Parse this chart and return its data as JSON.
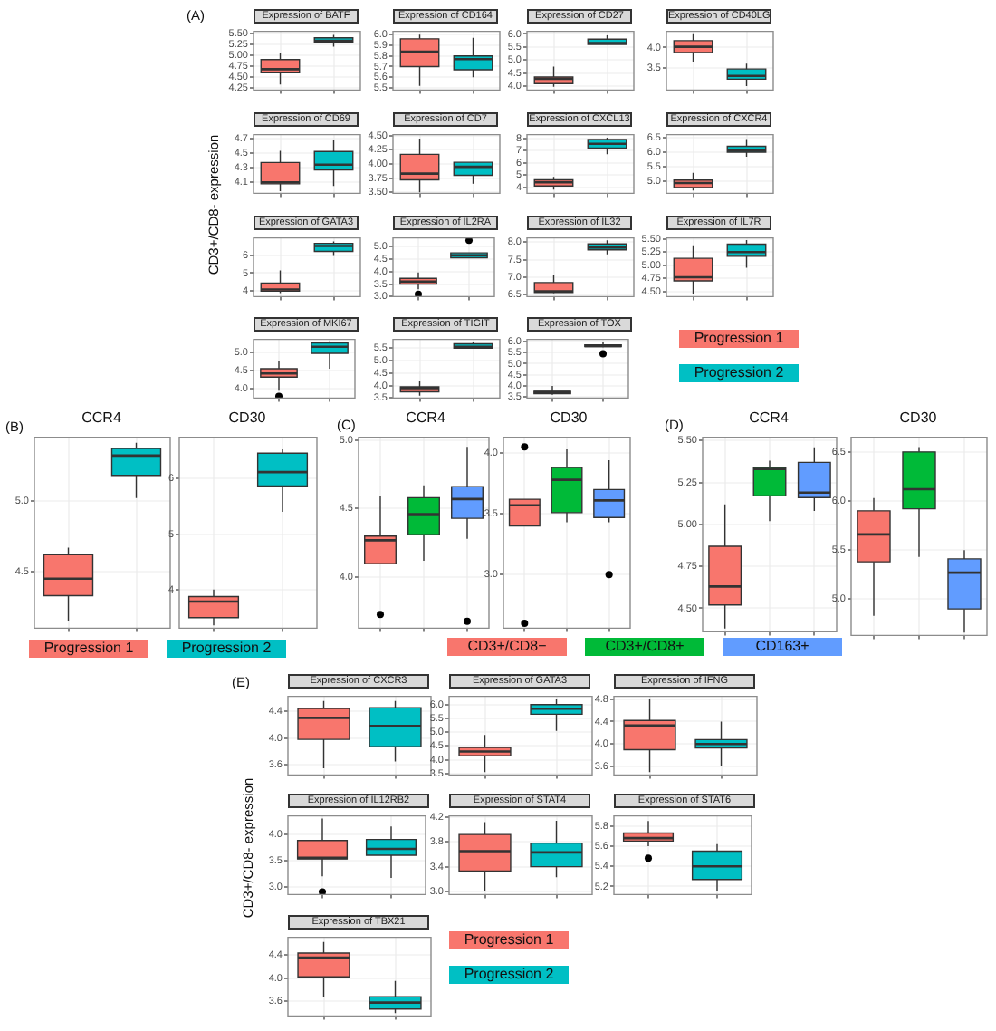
{
  "chart_data": [
    {
      "type": "box",
      "title": "Expression of BATF",
      "annotations": [
        "(A)"
      ],
      "ylabel": "CD3+/CD8- expression",
      "categories": [
        null,
        null
      ],
      "ylim": [
        4.2,
        5.55
      ],
      "yticks": [
        {
          "value": 4.25,
          "label": "4.25"
        },
        {
          "value": 4.5,
          "label": "4.50"
        },
        {
          "value": 4.75,
          "label": "4.75"
        },
        {
          "value": 5,
          "label": "5.00"
        },
        {
          "value": 5.25,
          "label": "5.25"
        },
        {
          "value": 5.5,
          "label": "5.50"
        }
      ],
      "grid": true,
      "series": [
        {
          "color": "#f8766d",
          "boxes": [
            {
              "low": 4.33,
              "q1": 4.6,
              "median": 4.68,
              "q3": 4.9,
              "high": 5.05
            },
            null
          ]
        },
        {
          "color": "#00bfc4",
          "boxes": [
            null,
            {
              "low": 5.2,
              "q1": 5.3,
              "median": 5.33,
              "q3": 5.4,
              "high": 5.47
            }
          ]
        }
      ]
    },
    {
      "type": "box",
      "title": "Expression of CD164",
      "categories": [
        null,
        null
      ],
      "ylim": [
        5.48,
        6.03
      ],
      "yticks": [
        5.5,
        5.6,
        5.7,
        5.8,
        5.9,
        {
          "value": 6,
          "label": "6.0"
        }
      ],
      "grid": true,
      "series": [
        {
          "color": "#f8766d",
          "boxes": [
            {
              "low": 5.52,
              "q1": 5.7,
              "median": 5.84,
              "q3": 5.96,
              "high": 6.0
            },
            null
          ]
        },
        {
          "color": "#00bfc4",
          "boxes": [
            null,
            {
              "low": 5.6,
              "q1": 5.67,
              "median": 5.77,
              "q3": 5.8,
              "high": 5.97
            }
          ]
        }
      ]
    },
    {
      "type": "box",
      "title": "Expression of CD27",
      "categories": [
        null,
        null
      ],
      "ylim": [
        3.85,
        6.1
      ],
      "yticks": [
        {
          "value": 4,
          "label": "4.0"
        },
        4.5,
        {
          "value": 5,
          "label": "5.0"
        },
        5.5,
        {
          "value": 6,
          "label": "6.0"
        }
      ],
      "grid": true,
      "series": [
        {
          "color": "#f8766d",
          "boxes": [
            {
              "low": 3.98,
              "q1": 4.1,
              "median": 4.28,
              "q3": 4.35,
              "high": 4.75
            },
            null
          ]
        },
        {
          "color": "#00bfc4",
          "boxes": [
            null,
            {
              "low": 5.6,
              "q1": 5.6,
              "median": 5.65,
              "q3": 5.8,
              "high": 5.95
            }
          ]
        }
      ]
    },
    {
      "type": "box",
      "title": "Expression of CD40LG",
      "categories": [
        null,
        null
      ],
      "ylim": [
        2.95,
        4.4
      ],
      "yticks": [
        3.5,
        {
          "value": 4,
          "label": "4.0"
        }
      ],
      "grid": true,
      "series": [
        {
          "color": "#f8766d",
          "boxes": [
            {
              "low": 3.65,
              "q1": 3.88,
              "median": 4.02,
              "q3": 4.17,
              "high": 4.35
            },
            null
          ]
        },
        {
          "color": "#00bfc4",
          "boxes": [
            null,
            {
              "low": 3.05,
              "q1": 3.22,
              "median": 3.3,
              "q3": 3.47,
              "high": 3.6
            }
          ]
        }
      ]
    },
    {
      "type": "box",
      "title": "Expression of CD69",
      "categories": [
        null,
        null
      ],
      "ylim": [
        3.95,
        4.75
      ],
      "yticks": [
        4.1,
        4.3,
        4.5,
        4.7
      ],
      "grid": true,
      "series": [
        {
          "color": "#f8766d",
          "boxes": [
            {
              "low": 3.98,
              "q1": 4.08,
              "median": 4.1,
              "q3": 4.37,
              "high": 4.53
            },
            null
          ]
        },
        {
          "color": "#00bfc4",
          "boxes": [
            null,
            {
              "low": 4.05,
              "q1": 4.27,
              "median": 4.34,
              "q3": 4.52,
              "high": 4.67
            }
          ]
        }
      ]
    },
    {
      "type": "box",
      "title": "Expression of CD7",
      "categories": [
        null,
        null
      ],
      "ylim": [
        3.48,
        4.52
      ],
      "yticks": [
        {
          "value": 3.5,
          "label": "3.50"
        },
        3.75,
        {
          "value": 4,
          "label": "4.00"
        },
        4.25,
        {
          "value": 4.5,
          "label": "4.50"
        }
      ],
      "grid": true,
      "series": [
        {
          "color": "#f8766d",
          "boxes": [
            {
              "low": 3.5,
              "q1": 3.72,
              "median": 3.83,
              "q3": 4.17,
              "high": 4.45
            },
            null
          ]
        },
        {
          "color": "#00bfc4",
          "boxes": [
            null,
            {
              "low": 3.65,
              "q1": 3.8,
              "median": 3.95,
              "q3": 4.03,
              "high": 4.03
            }
          ]
        }
      ]
    },
    {
      "type": "box",
      "title": "Expression of CXCL13",
      "categories": [
        null,
        null
      ],
      "ylim": [
        3.5,
        8.3
      ],
      "yticks": [
        4,
        5,
        6,
        7,
        8
      ],
      "grid": true,
      "series": [
        {
          "color": "#f8766d",
          "boxes": [
            {
              "low": 3.8,
              "q1": 4.1,
              "median": 4.4,
              "q3": 4.6,
              "high": 4.85
            },
            null
          ]
        },
        {
          "color": "#00bfc4",
          "boxes": [
            null,
            {
              "low": 6.7,
              "q1": 7.2,
              "median": 7.55,
              "q3": 7.9,
              "high": 8.05
            }
          ]
        }
      ]
    },
    {
      "type": "box",
      "title": "Expression of CXCR4",
      "categories": [
        null,
        null
      ],
      "ylim": [
        4.6,
        6.6
      ],
      "yticks": [
        {
          "value": 5,
          "label": "5.0"
        },
        5.5,
        {
          "value": 6,
          "label": "6.0"
        },
        6.5
      ],
      "grid": true,
      "series": [
        {
          "color": "#f8766d",
          "boxes": [
            {
              "low": 4.7,
              "q1": 4.8,
              "median": 4.95,
              "q3": 5.05,
              "high": 5.3
            },
            null
          ]
        },
        {
          "color": "#00bfc4",
          "boxes": [
            null,
            {
              "low": 5.85,
              "q1": 6.0,
              "median": 6.05,
              "q3": 6.2,
              "high": 6.45
            }
          ]
        }
      ]
    },
    {
      "type": "box",
      "title": "Expression of GATA3",
      "categories": [
        null,
        null
      ],
      "ylim": [
        3.7,
        6.95
      ],
      "yticks": [
        4,
        5,
        6
      ],
      "grid": true,
      "series": [
        {
          "color": "#f8766d",
          "boxes": [
            {
              "low": 3.9,
              "q1": 4.0,
              "median": 4.1,
              "q3": 4.45,
              "high": 5.15
            },
            null
          ]
        },
        {
          "color": "#00bfc4",
          "boxes": [
            null,
            {
              "low": 5.95,
              "q1": 6.2,
              "median": 6.5,
              "q3": 6.65,
              "high": 6.75
            }
          ]
        }
      ]
    },
    {
      "type": "box",
      "title": "Expression of IL2RA",
      "categories": [
        null,
        null
      ],
      "ylim": [
        3,
        5.35
      ],
      "yticks": [
        {
          "value": 3,
          "label": "3.0"
        },
        3.5,
        {
          "value": 4,
          "label": "4.0"
        },
        4.5,
        {
          "value": 5,
          "label": "5.0"
        }
      ],
      "grid": true,
      "series": [
        {
          "color": "#f8766d",
          "boxes": [
            {
              "low": 3.3,
              "q1": 3.5,
              "median": 3.6,
              "q3": 3.73,
              "high": 3.97,
              "outliers": [
                3.1
              ]
            },
            null
          ]
        },
        {
          "color": "#00bfc4",
          "boxes": [
            null,
            {
              "low": 4.55,
              "q1": 4.55,
              "median": 4.65,
              "q3": 4.75,
              "high": 4.75,
              "outliers": [
                5.25
              ]
            }
          ]
        }
      ]
    },
    {
      "type": "box",
      "title": "Expression of IL32",
      "categories": [
        null,
        null
      ],
      "ylim": [
        6.45,
        8.12
      ],
      "yticks": [
        6.5,
        {
          "value": 7,
          "label": "7.0"
        },
        7.5,
        {
          "value": 8,
          "label": "8.0"
        }
      ],
      "grid": true,
      "series": [
        {
          "color": "#f8766d",
          "boxes": [
            {
              "low": 6.55,
              "q1": 6.57,
              "median": 6.6,
              "q3": 6.85,
              "high": 7.05
            },
            null
          ]
        },
        {
          "color": "#00bfc4",
          "boxes": [
            null,
            {
              "low": 7.65,
              "q1": 7.78,
              "median": 7.85,
              "q3": 7.95,
              "high": 8.05
            }
          ]
        }
      ]
    },
    {
      "type": "box",
      "title": "Expression of IL7R",
      "categories": [
        null,
        null
      ],
      "ylim": [
        4.4,
        5.52
      ],
      "yticks": [
        {
          "value": 4.5,
          "label": "4.50"
        },
        4.75,
        {
          "value": 5,
          "label": "5.00"
        },
        5.25,
        {
          "value": 5.5,
          "label": "5.50"
        }
      ],
      "grid": true,
      "series": [
        {
          "color": "#f8766d",
          "boxes": [
            {
              "low": 4.45,
              "q1": 4.7,
              "median": 4.77,
              "q3": 5.13,
              "high": 5.38
            },
            null
          ]
        },
        {
          "color": "#00bfc4",
          "boxes": [
            null,
            {
              "low": 4.95,
              "q1": 5.17,
              "median": 5.25,
              "q3": 5.4,
              "high": 5.48
            }
          ]
        }
      ]
    },
    {
      "type": "box",
      "title": "Expression of MKI67",
      "categories": [
        null,
        null
      ],
      "ylim": [
        3.75,
        5.35
      ],
      "yticks": [
        {
          "value": 4,
          "label": "4.0"
        },
        4.5,
        {
          "value": 5,
          "label": "5.0"
        }
      ],
      "grid": true,
      "series": [
        {
          "color": "#f8766d",
          "boxes": [
            {
              "low": 3.95,
              "q1": 4.32,
              "median": 4.42,
              "q3": 4.55,
              "high": 4.75,
              "outliers": [
                3.8
              ]
            },
            null
          ]
        },
        {
          "color": "#00bfc4",
          "boxes": [
            null,
            {
              "low": 4.55,
              "q1": 4.97,
              "median": 5.15,
              "q3": 5.25,
              "high": 5.3
            }
          ]
        }
      ]
    },
    {
      "type": "box",
      "title": "Expression of TIGIT",
      "categories": [
        null,
        null
      ],
      "ylim": [
        3.5,
        5.85
      ],
      "yticks": [
        3.5,
        {
          "value": 4,
          "label": "4.0"
        },
        4.5,
        {
          "value": 5,
          "label": "5.0"
        },
        5.5
      ],
      "grid": true,
      "series": [
        {
          "color": "#f8766d",
          "boxes": [
            {
              "low": 3.6,
              "q1": 3.75,
              "median": 3.9,
              "q3": 3.95,
              "high": 4.2
            },
            null
          ]
        },
        {
          "color": "#00bfc4",
          "boxes": [
            null,
            {
              "low": 5.5,
              "q1": 5.5,
              "median": 5.55,
              "q3": 5.67,
              "high": 5.75
            }
          ]
        }
      ]
    },
    {
      "type": "box",
      "title": "Expression of TOX",
      "categories": [
        null,
        null
      ],
      "ylim": [
        3.45,
        6.1
      ],
      "yticks": [
        3.5,
        {
          "value": 4,
          "label": "4.0"
        },
        4.5,
        {
          "value": 5,
          "label": "5.0"
        },
        5.5,
        {
          "value": 6,
          "label": "6.0"
        }
      ],
      "grid": true,
      "legend": "right",
      "series": [
        {
          "name": "Progression 1",
          "color": "#f8766d",
          "boxes": [
            {
              "low": 3.6,
              "q1": 3.65,
              "median": 3.72,
              "q3": 3.75,
              "high": 4.0
            },
            null
          ]
        },
        {
          "name": "Progression 2",
          "color": "#00bfc4",
          "boxes": [
            null,
            {
              "low": 5.75,
              "q1": 5.77,
              "median": 5.8,
              "q3": 5.85,
              "high": 6.0,
              "outliers": [
                5.45
              ]
            }
          ]
        }
      ]
    },
    {
      "type": "box",
      "title": "CCR4",
      "annotations": [
        "(B)"
      ],
      "categories": [
        null,
        null
      ],
      "ylim": [
        4.1,
        5.45
      ],
      "yticks": [
        4.5,
        {
          "value": 5,
          "label": "5.0"
        }
      ],
      "grid": true,
      "legend": "bottom",
      "series": [
        {
          "name": "Progression 1",
          "color": "#f8766d",
          "boxes": [
            {
              "low": 4.15,
              "q1": 4.33,
              "median": 4.45,
              "q3": 4.62,
              "high": 4.67
            },
            null
          ]
        },
        {
          "name": "Progression 2",
          "color": "#00bfc4",
          "boxes": [
            null,
            {
              "low": 5.02,
              "q1": 5.18,
              "median": 5.32,
              "q3": 5.37,
              "high": 5.41
            }
          ]
        }
      ]
    },
    {
      "type": "box",
      "title": "CD30",
      "categories": [
        null,
        null
      ],
      "ylim": [
        3.3,
        6.75
      ],
      "yticks": [
        4,
        5,
        6
      ],
      "grid": true,
      "series": [
        {
          "color": "#f8766d",
          "boxes": [
            {
              "low": 3.35,
              "q1": 3.49,
              "median": 3.78,
              "q3": 3.87,
              "high": 4.0
            },
            null
          ]
        },
        {
          "color": "#00bfc4",
          "boxes": [
            null,
            {
              "low": 5.4,
              "q1": 5.87,
              "median": 6.12,
              "q3": 6.46,
              "high": 6.53
            }
          ]
        }
      ]
    },
    {
      "type": "box",
      "title": "CCR4",
      "annotations": [
        "(C)"
      ],
      "categories": [
        null,
        null,
        null
      ],
      "ylim": [
        3.63,
        5.02
      ],
      "yticks": [
        {
          "value": 4,
          "label": "4.0"
        },
        4.5,
        {
          "value": 5,
          "label": "5.0"
        }
      ],
      "grid": true,
      "legend": "bottom",
      "series": [
        {
          "name": "CD3+/CD8−",
          "color": "#f8766d",
          "boxes": [
            {
              "low": 4.1,
              "q1": 4.1,
              "median": 4.27,
              "q3": 4.3,
              "high": 4.59,
              "outliers": [
                3.73
              ]
            },
            null,
            null
          ]
        },
        {
          "name": "CD3+/CD8+",
          "color": "#00ba38",
          "boxes": [
            null,
            {
              "low": 4.12,
              "q1": 4.31,
              "median": 4.46,
              "q3": 4.58,
              "high": 4.67
            },
            null
          ]
        },
        {
          "name": "CD163+",
          "color": "#619cff",
          "boxes": [
            null,
            null,
            {
              "low": 4.28,
              "q1": 4.43,
              "median": 4.57,
              "q3": 4.66,
              "high": 4.95,
              "outliers": [
                3.68
              ]
            }
          ]
        }
      ]
    },
    {
      "type": "box",
      "title": "CD30",
      "categories": [
        null,
        null,
        null
      ],
      "ylim": [
        2.56,
        4.13
      ],
      "yticks": [
        {
          "value": 3,
          "label": "3.0"
        },
        3.5,
        {
          "value": 4,
          "label": "4.0"
        }
      ],
      "grid": true,
      "series": [
        {
          "color": "#f8766d",
          "boxes": [
            {
              "low": 3.4,
              "q1": 3.4,
              "median": 3.57,
              "q3": 3.62,
              "high": 3.62,
              "outliers": [
                4.05,
                2.6
              ]
            },
            null,
            null
          ]
        },
        {
          "color": "#00ba38",
          "boxes": [
            null,
            {
              "low": 3.43,
              "q1": 3.51,
              "median": 3.78,
              "q3": 3.88,
              "high": 4.03
            },
            null
          ]
        },
        {
          "color": "#619cff",
          "boxes": [
            null,
            null,
            {
              "low": 3.43,
              "q1": 3.47,
              "median": 3.61,
              "q3": 3.7,
              "high": 3.94,
              "outliers": [
                3.0
              ]
            }
          ]
        }
      ]
    },
    {
      "type": "box",
      "title": "CCR4",
      "annotations": [
        "(D)"
      ],
      "categories": [
        null,
        null,
        null
      ],
      "ylim": [
        4.36,
        5.52
      ],
      "yticks": [
        {
          "value": 4.5,
          "label": "4.50"
        },
        4.75,
        {
          "value": 5,
          "label": "5.00"
        },
        5.25,
        {
          "value": 5.5,
          "label": "5.50"
        }
      ],
      "grid": true,
      "series": [
        {
          "color": "#f8766d",
          "boxes": [
            {
              "low": 4.38,
              "q1": 4.52,
              "median": 4.63,
              "q3": 4.87,
              "high": 5.12
            },
            null,
            null
          ]
        },
        {
          "color": "#00ba38",
          "boxes": [
            null,
            {
              "low": 5.02,
              "q1": 5.17,
              "median": 5.33,
              "q3": 5.34,
              "high": 5.38
            },
            null
          ]
        },
        {
          "color": "#619cff",
          "boxes": [
            null,
            null,
            {
              "low": 5.08,
              "q1": 5.16,
              "median": 5.19,
              "q3": 5.37,
              "high": 5.46
            }
          ]
        }
      ]
    },
    {
      "type": "box",
      "title": "CD30",
      "categories": [
        null,
        null,
        null
      ],
      "ylim": [
        4.63,
        6.65
      ],
      "yticks": [
        {
          "value": 5,
          "label": "5.0"
        },
        5.5,
        {
          "value": 6,
          "label": "6.0"
        },
        6.5
      ],
      "grid": true,
      "series": [
        {
          "color": "#f8766d",
          "boxes": [
            {
              "low": 4.83,
              "q1": 5.38,
              "median": 5.66,
              "q3": 5.9,
              "high": 6.03
            },
            null,
            null
          ]
        },
        {
          "color": "#00ba38",
          "boxes": [
            null,
            {
              "low": 5.43,
              "q1": 5.92,
              "median": 6.12,
              "q3": 6.5,
              "high": 6.55
            },
            null
          ]
        },
        {
          "color": "#619cff",
          "boxes": [
            null,
            null,
            {
              "low": 4.66,
              "q1": 4.9,
              "median": 5.27,
              "q3": 5.41,
              "high": 5.5
            }
          ]
        }
      ]
    },
    {
      "type": "box",
      "title": "Expression of CXCR3",
      "annotations": [
        "(E)"
      ],
      "ylabel": "CD3+/CD8- expression",
      "categories": [
        null,
        null
      ],
      "ylim": [
        3.45,
        4.62
      ],
      "yticks": [
        3.6,
        {
          "value": 4,
          "label": "4.0"
        },
        4.4
      ],
      "grid": true,
      "series": [
        {
          "color": "#f8766d",
          "boxes": [
            {
              "low": 3.55,
              "q1": 3.98,
              "median": 4.3,
              "q3": 4.44,
              "high": 4.55
            },
            null
          ]
        },
        {
          "color": "#00bfc4",
          "boxes": [
            null,
            {
              "low": 3.65,
              "q1": 3.87,
              "median": 4.18,
              "q3": 4.45,
              "high": 4.55
            }
          ]
        }
      ]
    },
    {
      "type": "box",
      "title": "Expression of GATA3",
      "categories": [
        null,
        null
      ],
      "ylim": [
        3.45,
        6.3
      ],
      "yticks": [
        3.5,
        {
          "value": 4,
          "label": "4.0"
        },
        4.5,
        {
          "value": 5,
          "label": "5.0"
        },
        5.5,
        {
          "value": 6,
          "label": "6.0"
        }
      ],
      "grid": true,
      "series": [
        {
          "color": "#f8766d",
          "boxes": [
            {
              "low": 3.55,
              "q1": 4.15,
              "median": 4.3,
              "q3": 4.45,
              "high": 4.9
            },
            null
          ]
        },
        {
          "color": "#00bfc4",
          "boxes": [
            null,
            {
              "low": 5.05,
              "q1": 5.65,
              "median": 5.85,
              "q3": 6.0,
              "high": 6.2
            }
          ]
        }
      ]
    },
    {
      "type": "box",
      "title": "Expression of IFNG",
      "categories": [
        null,
        null
      ],
      "ylim": [
        3.45,
        4.85
      ],
      "yticks": [
        3.6,
        {
          "value": 4,
          "label": "4.0"
        },
        4.4,
        4.8
      ],
      "grid": true,
      "series": [
        {
          "color": "#f8766d",
          "boxes": [
            {
              "low": 3.5,
              "q1": 3.9,
              "median": 4.33,
              "q3": 4.42,
              "high": 4.8
            },
            null
          ]
        },
        {
          "color": "#00bfc4",
          "boxes": [
            null,
            {
              "low": 3.6,
              "q1": 3.93,
              "median": 4.0,
              "q3": 4.08,
              "high": 4.4
            }
          ]
        }
      ]
    },
    {
      "type": "box",
      "title": "Expression of IL12RB2",
      "categories": [
        null,
        null
      ],
      "ylim": [
        2.85,
        4.35
      ],
      "yticks": [
        {
          "value": 3,
          "label": "3.0"
        },
        3.5,
        {
          "value": 4,
          "label": "4.0"
        }
      ],
      "grid": true,
      "series": [
        {
          "color": "#f8766d",
          "boxes": [
            {
              "low": 3.2,
              "q1": 3.53,
              "median": 3.55,
              "q3": 3.88,
              "high": 4.3,
              "outliers": [
                2.9
              ]
            },
            null
          ]
        },
        {
          "color": "#00bfc4",
          "boxes": [
            null,
            {
              "low": 3.17,
              "q1": 3.6,
              "median": 3.72,
              "q3": 3.9,
              "high": 4.15
            }
          ]
        }
      ]
    },
    {
      "type": "box",
      "title": "Expression of STAT4",
      "categories": [
        null,
        null
      ],
      "ylim": [
        2.95,
        4.22
      ],
      "yticks": [
        {
          "value": 3,
          "label": "3.0"
        },
        3.4,
        3.8,
        4.2
      ],
      "grid": true,
      "series": [
        {
          "color": "#f8766d",
          "boxes": [
            {
              "low": 3.0,
              "q1": 3.33,
              "median": 3.65,
              "q3": 3.92,
              "high": 4.12
            },
            null
          ]
        },
        {
          "color": "#00bfc4",
          "boxes": [
            null,
            {
              "low": 3.23,
              "q1": 3.4,
              "median": 3.63,
              "q3": 3.78,
              "high": 4.14
            }
          ]
        }
      ]
    },
    {
      "type": "box",
      "title": "Expression of STAT6",
      "categories": [
        null,
        null
      ],
      "ylim": [
        5.12,
        5.9
      ],
      "yticks": [
        5.2,
        5.4,
        5.6,
        5.8
      ],
      "grid": true,
      "series": [
        {
          "color": "#f8766d",
          "boxes": [
            {
              "low": 5.6,
              "q1": 5.65,
              "median": 5.68,
              "q3": 5.73,
              "high": 5.85,
              "outliers": [
                5.48
              ]
            },
            null
          ]
        },
        {
          "color": "#00bfc4",
          "boxes": [
            null,
            {
              "low": 5.15,
              "q1": 5.27,
              "median": 5.4,
              "q3": 5.55,
              "high": 5.62
            }
          ]
        }
      ]
    },
    {
      "type": "box",
      "title": "Expression of TBX21",
      "categories": [
        null,
        null
      ],
      "ylim": [
        3.35,
        4.7
      ],
      "yticks": [
        3.6,
        {
          "value": 4,
          "label": "4.0"
        },
        4.4
      ],
      "grid": true,
      "legend": "right",
      "series": [
        {
          "name": "Progression 1",
          "color": "#f8766d",
          "boxes": [
            {
              "low": 3.68,
              "q1": 4.02,
              "median": 4.35,
              "q3": 4.43,
              "high": 4.62
            },
            null
          ]
        },
        {
          "name": "Progression 2",
          "color": "#00bfc4",
          "boxes": [
            null,
            {
              "low": 3.4,
              "q1": 3.47,
              "median": 3.58,
              "q3": 3.68,
              "high": 3.95
            }
          ]
        }
      ]
    }
  ]
}
